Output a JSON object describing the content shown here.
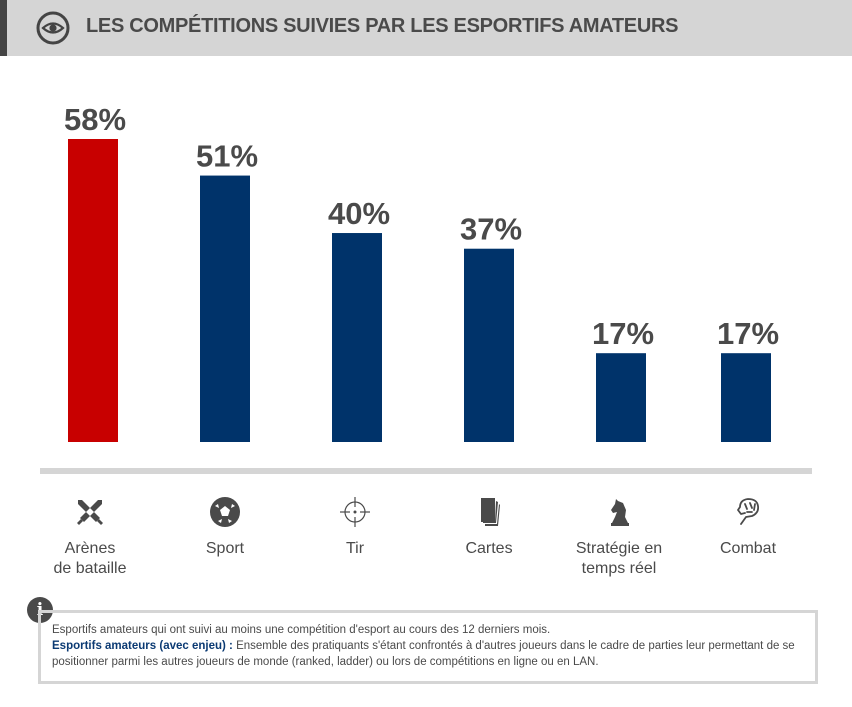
{
  "header": {
    "title": "LES COMPÉTITIONS SUIVIES PAR LES ESPORTIFS AMATEURS",
    "icon": "eye-icon"
  },
  "chart_data": {
    "type": "bar",
    "title": "LES COMPÉTITIONS SUIVIES PAR LES ESPORTIFS AMATEURS",
    "categories": [
      "Arènes de bataille",
      "Sport",
      "Tir",
      "Cartes",
      "Stratégie en temps réel",
      "Combat"
    ],
    "values": [
      58,
      51,
      40,
      37,
      17,
      17
    ],
    "value_labels": [
      "58%",
      "51%",
      "40%",
      "37%",
      "17%",
      "17%"
    ],
    "unit": "%",
    "highlight_index": 0,
    "colors": {
      "highlight": "#c80000",
      "default": "#00336a",
      "label": "#4a4a4a"
    },
    "xlabel": "",
    "ylabel": "",
    "ylim": [
      0,
      58
    ],
    "grid": false,
    "legend": "none"
  },
  "categories": [
    {
      "label_lines": [
        "Arènes",
        "de bataille"
      ],
      "icon": "crossed-swords-icon"
    },
    {
      "label_lines": [
        "Sport"
      ],
      "icon": "soccer-ball-icon"
    },
    {
      "label_lines": [
        "Tir"
      ],
      "icon": "crosshair-icon"
    },
    {
      "label_lines": [
        "Cartes"
      ],
      "icon": "cards-icon"
    },
    {
      "label_lines": [
        "Stratégie en",
        "temps réel"
      ],
      "icon": "chess-knight-icon"
    },
    {
      "label_lines": [
        "Combat"
      ],
      "icon": "fist-icon"
    }
  ],
  "note": {
    "icon": "info-icon",
    "line1": "Esportifs amateurs qui ont suivi au moins une compétition d'esport au cours des 12 derniers mois.",
    "bold_label": "Esportifs amateurs (avec enjeu) :",
    "definition": " Ensemble des pratiquants s'étant confrontés à d'autres joueurs dans le cadre de parties leur permettant de se positionner parmi les autres joueurs de monde (ranked, ladder) ou lors de compétitions en ligne ou en LAN."
  }
}
